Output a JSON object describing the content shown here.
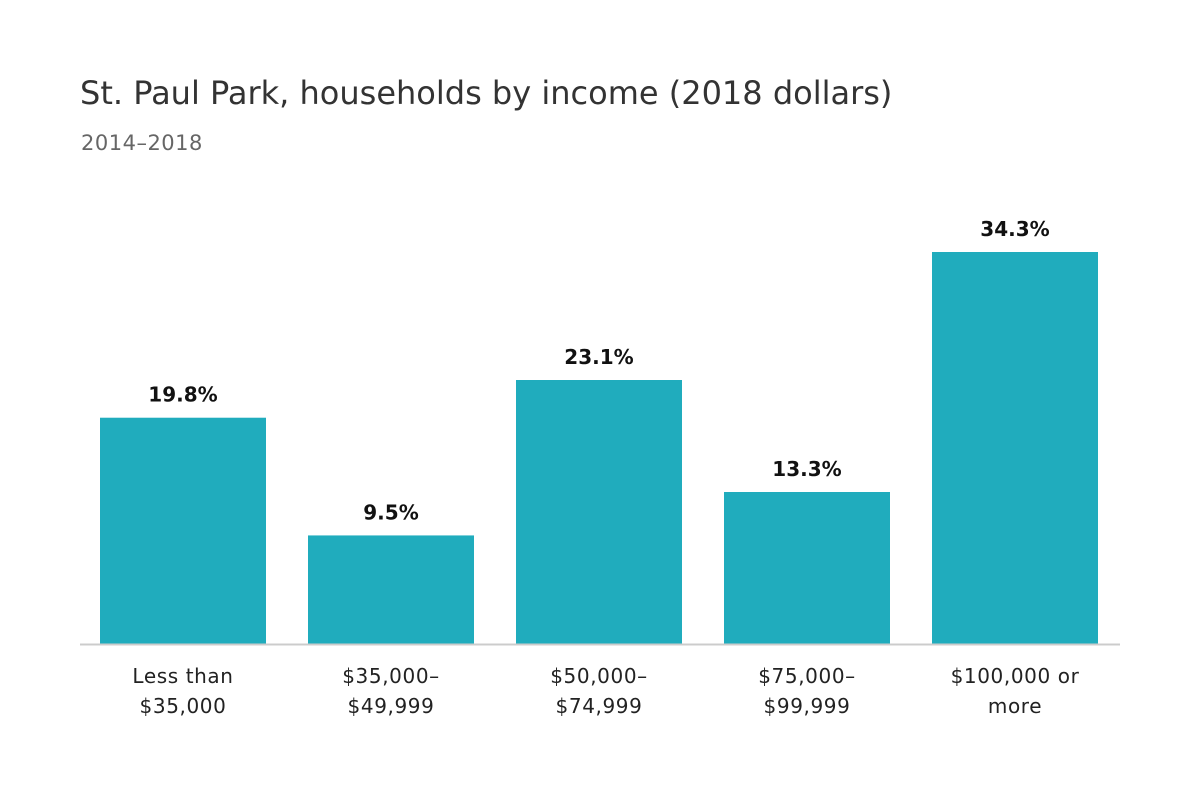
{
  "chart_data": {
    "type": "bar",
    "title": "St. Paul Park, households by income (2018 dollars)",
    "subtitle": "2014–2018",
    "xlabel": "",
    "ylabel": "",
    "categories": [
      [
        "Less than",
        "$35,000"
      ],
      [
        "$35,000–",
        "$49,999"
      ],
      [
        "$50,000–",
        "$74,999"
      ],
      [
        "$75,000–",
        "$99,999"
      ],
      [
        "$100,000 or",
        "more"
      ]
    ],
    "values": [
      19.8,
      9.5,
      23.1,
      13.3,
      34.3
    ],
    "value_labels": [
      "19.8%",
      "9.5%",
      "23.1%",
      "13.3%",
      "34.3%"
    ],
    "ylim": [
      0,
      34.3
    ],
    "grid": false,
    "legend": "none",
    "bar_color": "#20acbd",
    "axis_color": "#cccccc"
  }
}
